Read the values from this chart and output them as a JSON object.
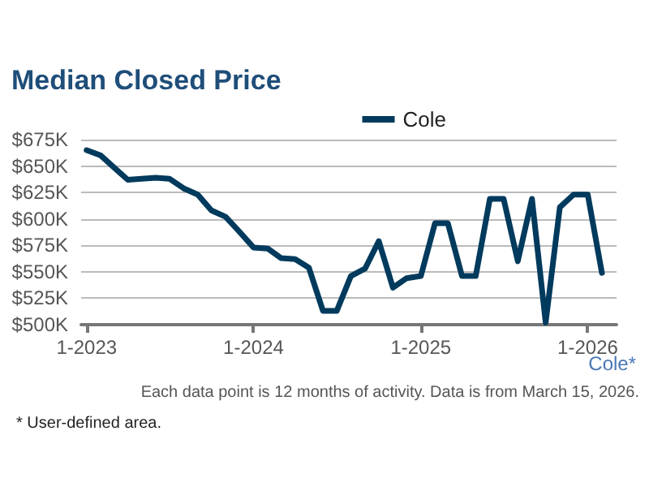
{
  "chart_data": {
    "type": "line",
    "title": "Median Closed Price",
    "x": [
      "2023-01",
      "2023-02",
      "2023-03",
      "2023-04",
      "2023-05",
      "2023-06",
      "2023-07",
      "2023-08",
      "2023-09",
      "2023-10",
      "2023-11",
      "2023-12",
      "2024-01",
      "2024-02",
      "2024-03",
      "2024-04",
      "2024-05",
      "2024-06",
      "2024-07",
      "2024-08",
      "2024-09",
      "2024-10",
      "2024-11",
      "2024-12",
      "2025-01",
      "2025-02",
      "2025-03",
      "2025-04",
      "2025-05",
      "2025-06",
      "2025-07",
      "2025-08",
      "2025-09",
      "2025-10",
      "2025-11",
      "2025-12",
      "2026-01",
      "2026-02"
    ],
    "series": [
      {
        "name": "Cole",
        "color": "#003a5d",
        "values": [
          665,
          660,
          649,
          637,
          638,
          639,
          638,
          629,
          623,
          608,
          602,
          588,
          573,
          572,
          563,
          562,
          554,
          513,
          513,
          546,
          553,
          579,
          535,
          544,
          546,
          596,
          596,
          546,
          546,
          619,
          619,
          560,
          619,
          502,
          611,
          623,
          623,
          549
        ]
      }
    ],
    "xlim": [
      "2022-12-20",
      "2026-03-05"
    ],
    "xticks": [
      {
        "value": "2023-01",
        "label": "1-2023"
      },
      {
        "value": "2024-01",
        "label": "1-2024"
      },
      {
        "value": "2025-01",
        "label": "1-2025"
      },
      {
        "value": "2026-01",
        "label": "1-2026"
      }
    ],
    "ylim": [
      500,
      675
    ],
    "yticks": [
      {
        "value": 500,
        "label": "$500K"
      },
      {
        "value": 525,
        "label": "$525K"
      },
      {
        "value": 550,
        "label": "$550K"
      },
      {
        "value": 575,
        "label": "$575K"
      },
      {
        "value": 600,
        "label": "$600K"
      },
      {
        "value": 625,
        "label": "$625K"
      },
      {
        "value": 650,
        "label": "$650K"
      },
      {
        "value": 675,
        "label": "$675K"
      }
    ],
    "grid": "y",
    "legend": "top right",
    "marker": "none",
    "line_style": "solid",
    "annotations": [
      "Cole*",
      "Each data point is 12 months of activity. Data is from March 15, 2026.",
      "* User-defined area."
    ]
  }
}
